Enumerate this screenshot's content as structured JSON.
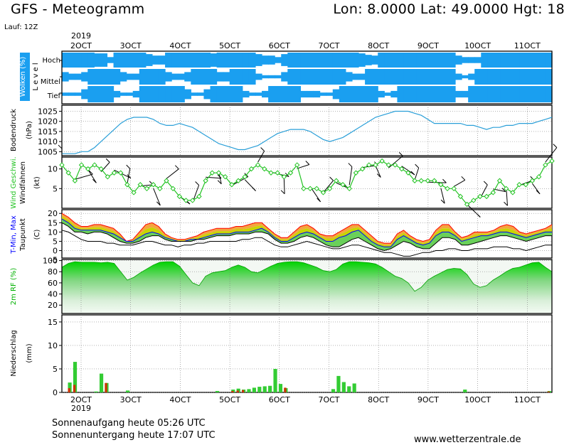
{
  "header": {
    "title": "GFS - Meteogramm",
    "coords": "Lon: 8.0000  Lat: 49.0000  Hgt: 18",
    "run": "Lauf: 12Z"
  },
  "footer": {
    "sunrise": "Sonnenaufgang heute 05:26 UTC",
    "sunset": "Sonnenuntergang heute 17:07 UTC",
    "site": "www.wetterzentrale.de"
  },
  "colors": {
    "cloud": "#1a9ff0",
    "pressure": "#2a9fd8",
    "wind": "#22c322",
    "tmin": "#0000ff",
    "tmax": "#ff0000",
    "rh_dark": "#00c000",
    "precip": "#33cc33",
    "precip_rain": "#cc3300"
  },
  "chart_data": [
    {
      "type": "heatmap",
      "panel": "cloud",
      "ylabel": "Wolken (%)",
      "level_axis": "L e v e l",
      "levels": [
        "Hoch",
        "Mittel",
        "Tief"
      ],
      "day_labels": [
        "2OCT",
        "3OCT",
        "4OCT",
        "5OCT",
        "6OCT",
        "7OCT",
        "8OCT",
        "9OCT",
        "10OCT",
        "11OCT"
      ],
      "year_label": "2019",
      "cover_hoch": [
        100,
        100,
        100,
        100,
        100,
        90,
        90,
        40,
        100,
        100,
        100,
        100,
        100,
        80,
        60,
        60,
        100,
        100,
        100,
        100,
        100,
        100,
        100,
        90,
        100,
        100,
        100,
        100,
        100,
        100,
        80,
        60,
        60,
        40,
        80,
        100,
        100,
        100,
        100,
        100,
        100,
        100,
        100,
        100,
        100,
        100,
        90,
        70,
        60,
        100,
        100,
        100,
        100,
        100,
        100,
        100,
        100,
        100,
        100,
        100,
        100,
        60,
        40,
        40,
        40,
        100,
        100,
        100,
        100,
        100,
        100,
        100,
        100,
        100,
        100,
        100
      ],
      "cover_mittel": [
        60,
        40,
        40,
        60,
        100,
        100,
        100,
        100,
        100,
        60,
        40,
        40,
        100,
        100,
        100,
        100,
        60,
        40,
        40,
        60,
        100,
        100,
        100,
        100,
        60,
        60,
        100,
        100,
        100,
        100,
        40,
        20,
        20,
        20,
        60,
        100,
        100,
        100,
        100,
        100,
        100,
        100,
        100,
        100,
        60,
        40,
        40,
        100,
        100,
        100,
        100,
        100,
        100,
        100,
        100,
        100,
        100,
        100,
        100,
        100,
        100,
        40,
        20,
        40,
        100,
        100,
        100,
        100,
        100,
        100,
        100,
        100,
        100,
        100,
        100,
        100
      ],
      "cover_tief": [
        20,
        20,
        20,
        60,
        100,
        100,
        100,
        100,
        40,
        20,
        20,
        40,
        100,
        100,
        100,
        100,
        100,
        100,
        100,
        60,
        20,
        20,
        60,
        100,
        100,
        100,
        100,
        100,
        40,
        20,
        20,
        40,
        100,
        100,
        100,
        100,
        100,
        40,
        40,
        40,
        20,
        20,
        60,
        100,
        100,
        100,
        100,
        100,
        100,
        40,
        20,
        40,
        100,
        100,
        100,
        100,
        100,
        100,
        100,
        100,
        100,
        40,
        40,
        100,
        100,
        100,
        100,
        100,
        100,
        100,
        100,
        100,
        100,
        100,
        100,
        100
      ]
    },
    {
      "type": "line",
      "panel": "pressure",
      "ylabel": "Bodendruck",
      "unit": "(hPa)",
      "ylim": [
        1003,
        1028
      ],
      "yticks": [
        1005,
        1010,
        1015,
        1020,
        1025
      ],
      "values": [
        1004,
        1004,
        1004,
        1005,
        1005,
        1007,
        1010,
        1013,
        1016,
        1019,
        1021,
        1022,
        1022,
        1022,
        1021,
        1019,
        1018,
        1018,
        1019,
        1018,
        1017,
        1015,
        1013,
        1011,
        1009,
        1008,
        1007,
        1006,
        1006,
        1007,
        1008,
        1010,
        1012,
        1014,
        1015,
        1016,
        1016,
        1016,
        1015,
        1013,
        1011,
        1010,
        1011,
        1012,
        1014,
        1016,
        1018,
        1020,
        1022,
        1023,
        1024,
        1025,
        1025,
        1025,
        1024,
        1023,
        1021,
        1019,
        1019,
        1019,
        1019,
        1019,
        1018,
        1018,
        1017,
        1016,
        1017,
        1017,
        1018,
        1018,
        1019,
        1019,
        1019,
        1020,
        1021,
        1022
      ]
    },
    {
      "type": "line",
      "panel": "wind",
      "ylabel": "Wind Geschwi.",
      "ylabel2": "Windfahnen",
      "unit": "(kt)",
      "ylim": [
        0,
        13
      ],
      "yticks": [
        5,
        10
      ],
      "speed": [
        11,
        9,
        7,
        11,
        10,
        11,
        10,
        8,
        9,
        9,
        6,
        4,
        6,
        5,
        6,
        5,
        7,
        5,
        3,
        2,
        2,
        3,
        7,
        9,
        9,
        8,
        6,
        7,
        8,
        10,
        11,
        10,
        9,
        9,
        8,
        9,
        11,
        5,
        5,
        5,
        4,
        5,
        7,
        6,
        5,
        9,
        10,
        11,
        11,
        12,
        11,
        11,
        10,
        9,
        7,
        7,
        7,
        7,
        6,
        5,
        5,
        3,
        1,
        2,
        3,
        3,
        4,
        7,
        5,
        4,
        6,
        6,
        7,
        8,
        11,
        12
      ]
    },
    {
      "type": "area",
      "panel": "temperature",
      "ylabel_parts": [
        "T-Min",
        "Max",
        "Taupunkt"
      ],
      "unit": "(C)",
      "ylim": [
        -4,
        22
      ],
      "yticks": [
        0,
        5,
        10,
        15,
        20
      ],
      "tmax": [
        20,
        18,
        15,
        13,
        13,
        14,
        14,
        13,
        12,
        9,
        5,
        6,
        10,
        14,
        15,
        13,
        9,
        7,
        6,
        6,
        7,
        8,
        10,
        11,
        12,
        12,
        12,
        13,
        13,
        14,
        15,
        15,
        12,
        9,
        7,
        7,
        10,
        13,
        14,
        12,
        9,
        8,
        8,
        10,
        12,
        14,
        14,
        11,
        8,
        5,
        4,
        4,
        9,
        11,
        8,
        6,
        5,
        6,
        11,
        14,
        14,
        10,
        7,
        8,
        10,
        10,
        10,
        11,
        13,
        14,
        13,
        10,
        9,
        10,
        11,
        12,
        14
      ],
      "tmin": [
        17,
        15,
        12,
        11,
        11,
        11,
        11,
        10,
        9,
        7,
        5,
        5,
        7,
        9,
        10,
        9,
        7,
        6,
        5,
        5,
        6,
        6,
        7,
        8,
        9,
        9,
        9,
        10,
        10,
        10,
        11,
        12,
        10,
        7,
        5,
        5,
        7,
        9,
        10,
        9,
        7,
        5,
        5,
        7,
        8,
        10,
        11,
        8,
        5,
        3,
        2,
        2,
        6,
        8,
        6,
        4,
        3,
        4,
        8,
        10,
        10,
        8,
        5,
        6,
        7,
        8,
        8,
        9,
        10,
        10,
        9,
        8,
        7,
        8,
        9,
        10,
        10
      ],
      "dew": [
        15,
        13,
        10,
        10,
        9,
        10,
        10,
        9,
        7,
        5,
        4,
        4,
        5,
        7,
        8,
        8,
        6,
        5,
        5,
        5,
        5,
        6,
        6,
        7,
        8,
        8,
        8,
        9,
        9,
        9,
        10,
        10,
        9,
        6,
        4,
        4,
        5,
        7,
        8,
        7,
        5,
        3,
        2,
        2,
        4,
        6,
        7,
        5,
        3,
        1,
        0,
        1,
        3,
        5,
        4,
        2,
        1,
        1,
        4,
        7,
        7,
        6,
        3,
        3,
        4,
        5,
        6,
        7,
        8,
        8,
        7,
        6,
        5,
        6,
        7,
        8,
        8
      ],
      "tdry": [
        11,
        10,
        8,
        6,
        5,
        5,
        5,
        4,
        4,
        3,
        3,
        3,
        4,
        5,
        5,
        4,
        3,
        3,
        2,
        3,
        3,
        4,
        4,
        5,
        5,
        5,
        5,
        5,
        6,
        6,
        7,
        7,
        5,
        3,
        2,
        2,
        3,
        4,
        5,
        4,
        3,
        2,
        1,
        1,
        2,
        3,
        3,
        2,
        1,
        0,
        -1,
        -1,
        -2,
        -3,
        -3,
        -2,
        -1,
        -1,
        0,
        0,
        1,
        1,
        0,
        0,
        1,
        1,
        1,
        2,
        2,
        2,
        1,
        1,
        0,
        1,
        2,
        3,
        3
      ]
    },
    {
      "type": "area",
      "panel": "humidity",
      "ylabel": "2m RF (%)",
      "ylim": [
        5,
        102
      ],
      "yticks": [
        20,
        40,
        60,
        80,
        100
      ],
      "values": [
        88,
        95,
        98,
        97,
        97,
        97,
        96,
        97,
        95,
        80,
        65,
        70,
        78,
        85,
        92,
        97,
        98,
        98,
        90,
        75,
        60,
        55,
        72,
        78,
        80,
        82,
        88,
        92,
        88,
        80,
        78,
        84,
        90,
        95,
        97,
        98,
        98,
        96,
        92,
        88,
        82,
        80,
        84,
        94,
        98,
        98,
        97,
        96,
        94,
        88,
        80,
        72,
        68,
        60,
        45,
        52,
        65,
        72,
        78,
        84,
        86,
        85,
        75,
        58,
        52,
        55,
        65,
        72,
        80,
        86,
        88,
        92,
        96,
        97,
        88,
        80
      ],
      "max": [
        88,
        95,
        98,
        97,
        97,
        97,
        96,
        97,
        95,
        80,
        65,
        70,
        78,
        85,
        92,
        97,
        98,
        98,
        90,
        75,
        60,
        55,
        72,
        78,
        80,
        82,
        88,
        92,
        88,
        80,
        78,
        84,
        90,
        95,
        97,
        98,
        98,
        96,
        92,
        88,
        82,
        80,
        84,
        94,
        98,
        98,
        97,
        96,
        94,
        88,
        80,
        72,
        68,
        60,
        45,
        52,
        65,
        72,
        78,
        84,
        86,
        85,
        75,
        58,
        52,
        55,
        65,
        72,
        80,
        86,
        88,
        92,
        96,
        97,
        88,
        80
      ]
    },
    {
      "type": "bar",
      "panel": "precip",
      "ylabel": "Niederschlag",
      "unit": "(mm)",
      "ylim": [
        0,
        16.5
      ],
      "yticks": [
        0,
        5,
        10,
        15
      ],
      "day_labels": [
        "2OCT",
        "3OCT",
        "4OCT",
        "5OCT",
        "6OCT",
        "7OCT",
        "8OCT",
        "9OCT",
        "10OCT",
        "11OCT"
      ],
      "year_label": "2019",
      "values": [
        0,
        2.1,
        6.5,
        0,
        0,
        0,
        0.2,
        4.0,
        2.0,
        0,
        0,
        0,
        0.4,
        0,
        0,
        0,
        0,
        0,
        0,
        0,
        0,
        0,
        0,
        0,
        0,
        0,
        0,
        0,
        0,
        0.3,
        0,
        0,
        0.6,
        0.8,
        0.6,
        0.7,
        1.0,
        1.2,
        1.3,
        1.4,
        5.0,
        1.8,
        0.9,
        0,
        0,
        0,
        0,
        0,
        0,
        0,
        0,
        0.7,
        3.5,
        2.2,
        1.3,
        1.9,
        0,
        0,
        0,
        0,
        0,
        0,
        0,
        0,
        0,
        0,
        0,
        0,
        0,
        0,
        0,
        0,
        0,
        0,
        0,
        0,
        0.6,
        0,
        0,
        0,
        0,
        0,
        0,
        0,
        0,
        0,
        0,
        0,
        0,
        0,
        0,
        0,
        0.3
      ],
      "rain": [
        0,
        0.9,
        1.6,
        0,
        0,
        0,
        0,
        0,
        2.0,
        0,
        0,
        0,
        0,
        0,
        0,
        0,
        0,
        0,
        0,
        0,
        0,
        0,
        0,
        0,
        0,
        0,
        0,
        0,
        0,
        0,
        0,
        0,
        0.3,
        0.4,
        0.5,
        0,
        0,
        0,
        0,
        0,
        0,
        0,
        1.0,
        0,
        0,
        0,
        0,
        0,
        0,
        0,
        0,
        0,
        0,
        0,
        0,
        0,
        0,
        0,
        0,
        0,
        0,
        0,
        0,
        0,
        0,
        0,
        0,
        0,
        0,
        0,
        0,
        0,
        0,
        0,
        0,
        0,
        0,
        0,
        0,
        0,
        0,
        0,
        0,
        0,
        0,
        0,
        0,
        0,
        0,
        0,
        0,
        0,
        0.2
      ]
    }
  ]
}
